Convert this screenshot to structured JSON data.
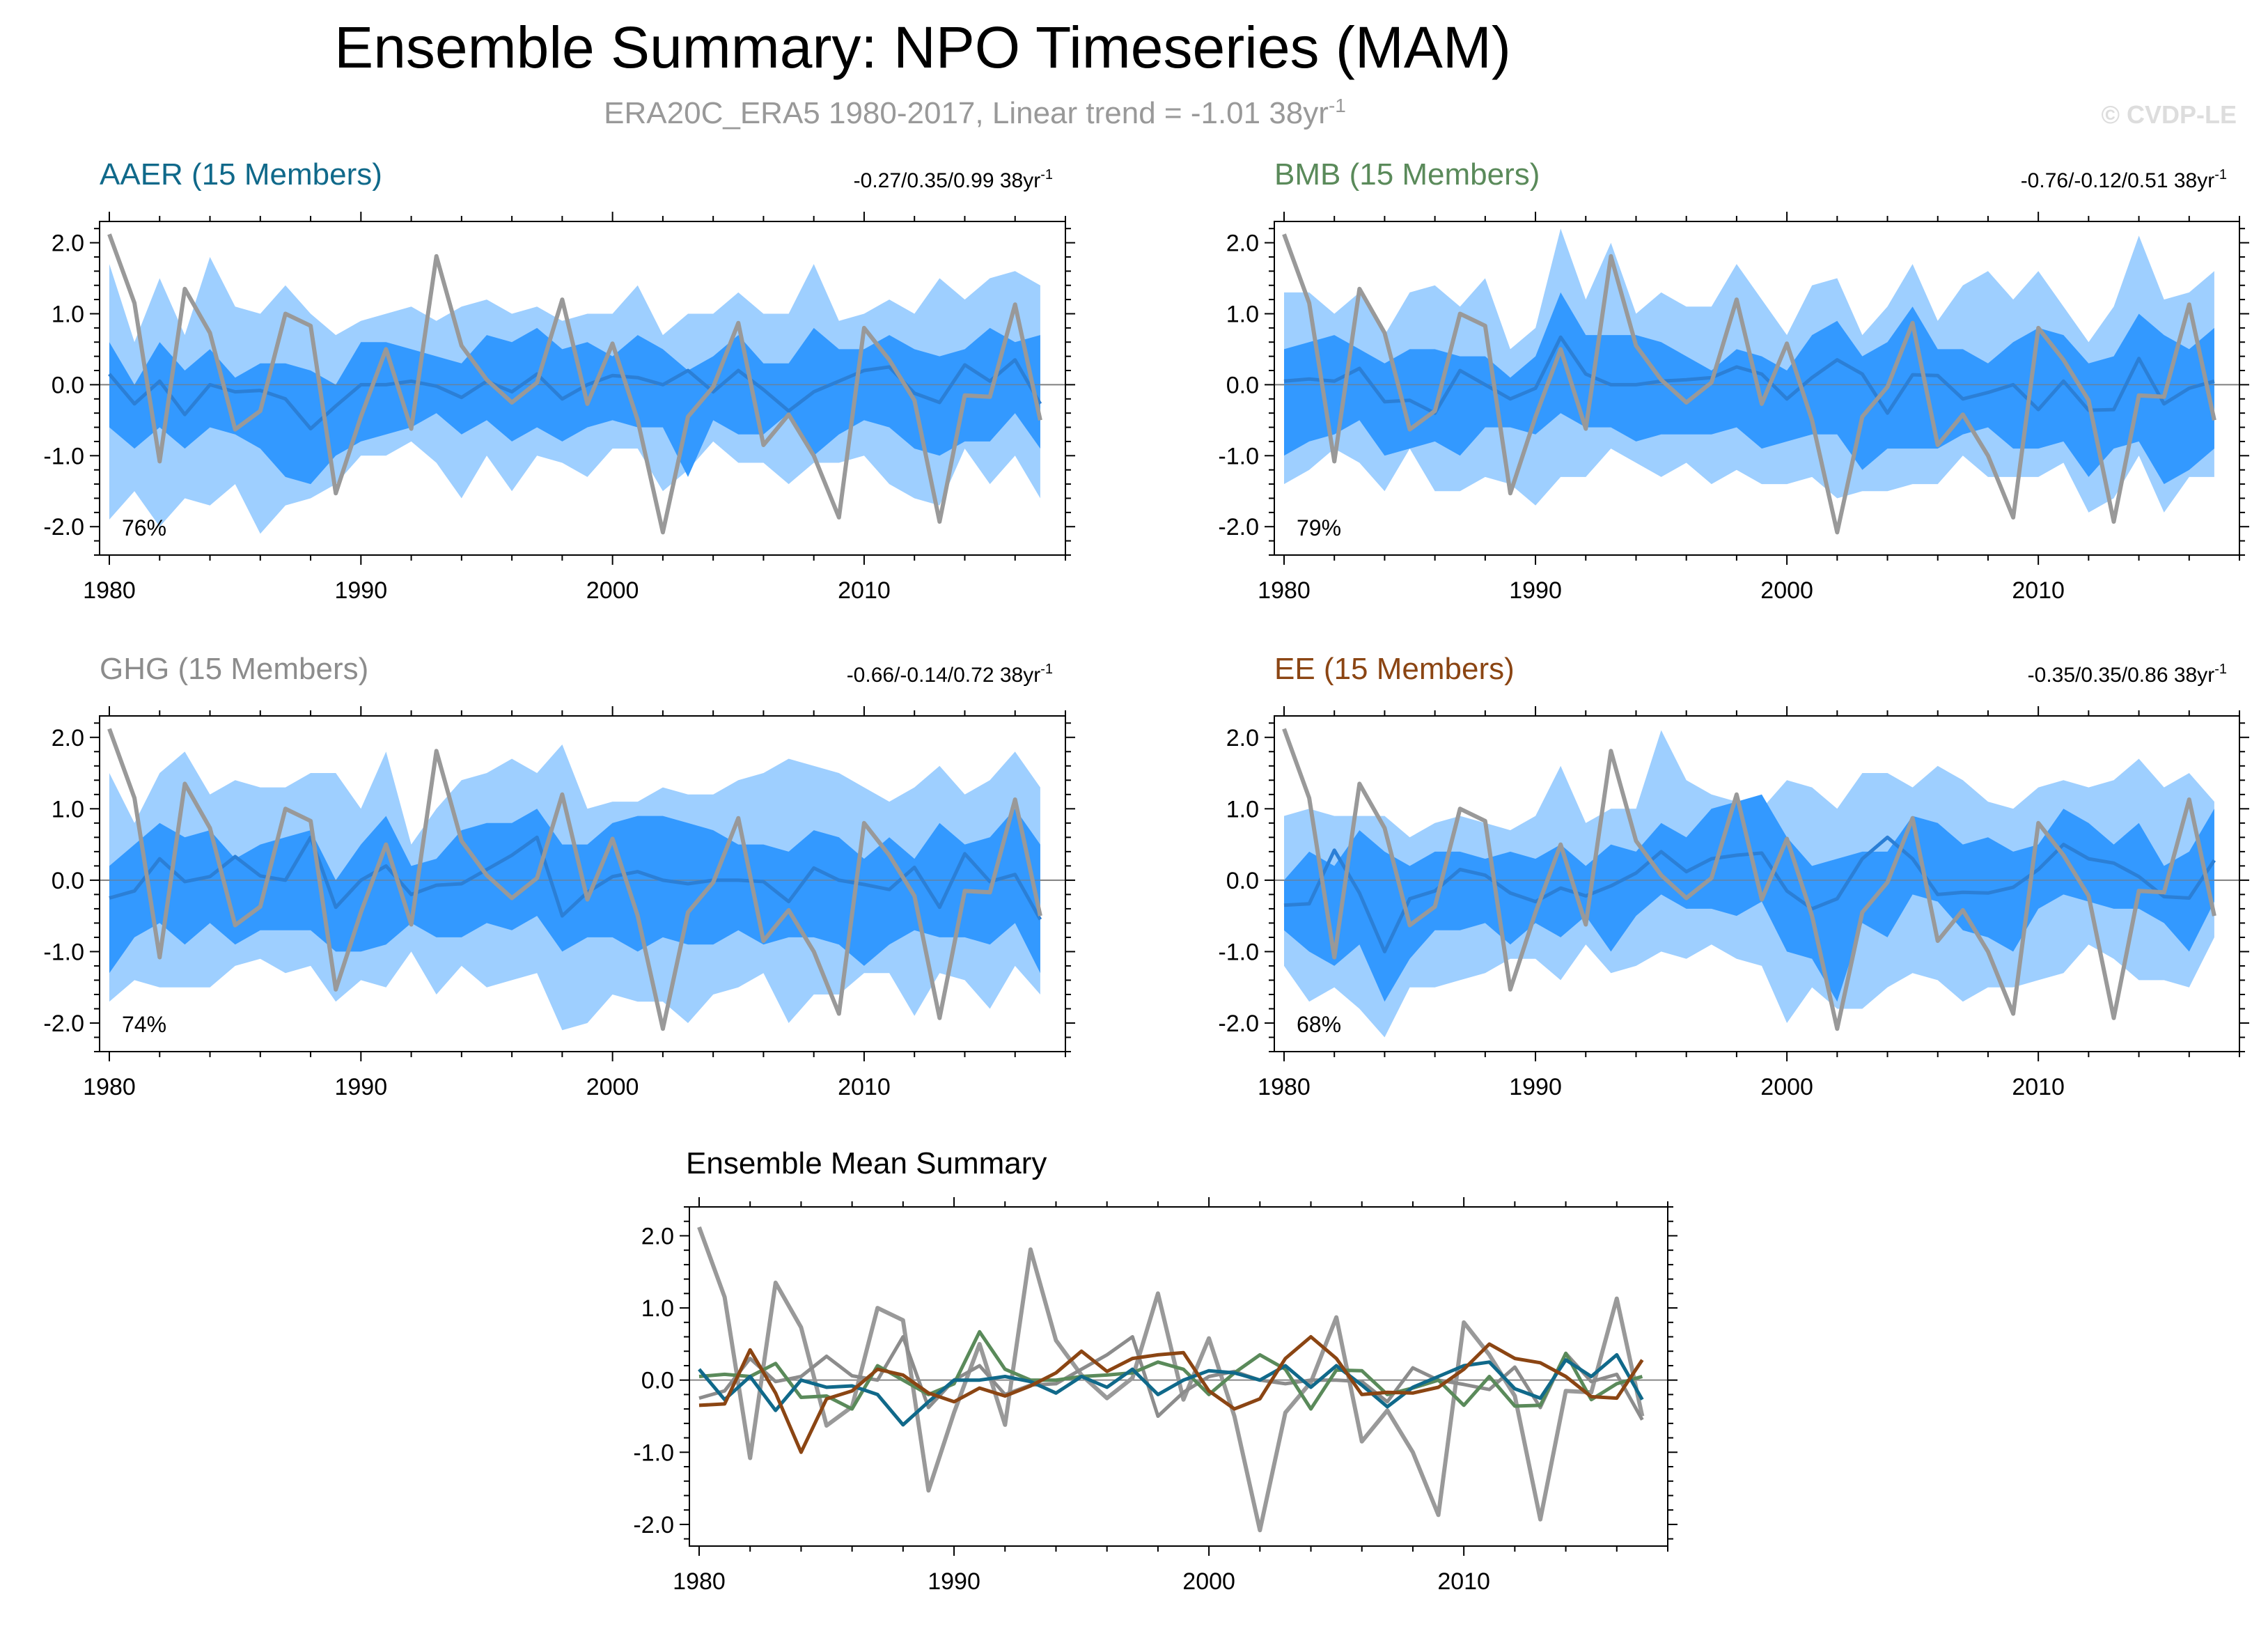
{
  "title": "Ensemble Summary: NPO Timeseries (MAM)",
  "subtitle": "ERA20C_ERA5 1980-2017, Linear trend = -1.01 38yr",
  "subtitle_exp": "-1",
  "watermark": "© CVDP-LE",
  "colors": {
    "outer_band": "#9ecfff",
    "inner_band": "#3399ff",
    "ens_mean": "#2b7fd6",
    "obs": "#999999",
    "AAER": "#10698a",
    "BMB": "#5a8a5a",
    "GHG": "#8c8c8c",
    "EE": "#8b4513"
  },
  "chart_data": [
    {
      "type": "area",
      "name": "AAER",
      "title": "AAER (15 Members)",
      "trend_label": "-0.27/0.35/0.99 38yr",
      "trend_exp": "-1",
      "pct_label": "76%",
      "x": [
        1980,
        1981,
        1982,
        1983,
        1984,
        1985,
        1986,
        1987,
        1988,
        1989,
        1990,
        1991,
        1992,
        1993,
        1994,
        1995,
        1996,
        1997,
        1998,
        1999,
        2000,
        2001,
        2002,
        2003,
        2004,
        2005,
        2006,
        2007,
        2008,
        2009,
        2010,
        2011,
        2012,
        2013,
        2014,
        2015,
        2016,
        2017
      ],
      "xticks": [
        "1980",
        "1990",
        "2000",
        "2010"
      ],
      "yticks": [
        "2.0",
        "1.0",
        "0.0",
        "-1.0",
        "-2.0"
      ],
      "ylim": [
        -2.4,
        2.3
      ],
      "band_outer_upper": [
        1.7,
        0.6,
        1.5,
        0.7,
        1.8,
        1.1,
        1.0,
        1.4,
        1.0,
        0.7,
        0.9,
        1.0,
        1.1,
        0.9,
        1.1,
        1.2,
        1.0,
        1.1,
        0.9,
        1.0,
        1.0,
        1.4,
        0.7,
        1.0,
        1.0,
        1.3,
        1.0,
        1.0,
        1.7,
        0.9,
        1.0,
        1.2,
        1.0,
        1.5,
        1.2,
        1.5,
        1.6,
        1.4
      ],
      "band_outer_lower": [
        -1.9,
        -1.5,
        -2.0,
        -1.6,
        -1.7,
        -1.4,
        -2.1,
        -1.7,
        -1.6,
        -1.4,
        -1.0,
        -1.0,
        -0.8,
        -1.1,
        -1.6,
        -1.0,
        -1.5,
        -1.0,
        -1.1,
        -1.3,
        -0.9,
        -0.9,
        -1.5,
        -1.2,
        -0.8,
        -1.1,
        -1.1,
        -1.4,
        -1.1,
        -1.1,
        -1.0,
        -1.4,
        -1.6,
        -1.7,
        -0.9,
        -1.4,
        -1.0,
        -1.6
      ],
      "band_inner_upper": [
        0.6,
        0.0,
        0.6,
        0.2,
        0.5,
        0.1,
        0.3,
        0.3,
        0.2,
        0.0,
        0.6,
        0.6,
        0.5,
        0.4,
        0.3,
        0.7,
        0.6,
        0.8,
        0.5,
        0.6,
        0.4,
        0.7,
        0.5,
        0.2,
        0.4,
        0.7,
        0.3,
        0.3,
        0.8,
        0.5,
        0.5,
        0.7,
        0.5,
        0.4,
        0.5,
        0.8,
        0.6,
        0.7
      ],
      "band_inner_lower": [
        -0.6,
        -0.9,
        -0.6,
        -0.9,
        -0.6,
        -0.7,
        -0.9,
        -1.3,
        -1.4,
        -1.0,
        -0.8,
        -0.7,
        -0.6,
        -0.4,
        -0.7,
        -0.5,
        -0.8,
        -0.6,
        -0.8,
        -0.6,
        -0.5,
        -0.6,
        -0.6,
        -1.3,
        -0.5,
        -0.7,
        -0.7,
        -0.4,
        -1.0,
        -0.7,
        -0.5,
        -0.6,
        -0.9,
        -1.0,
        -0.8,
        -0.8,
        -0.4,
        -0.9
      ],
      "ensemble_mean": [
        0.15,
        -0.27,
        0.05,
        -0.42,
        0.0,
        -0.1,
        -0.08,
        -0.2,
        -0.62,
        -0.3,
        0.0,
        0.0,
        0.05,
        -0.02,
        -0.18,
        0.05,
        -0.1,
        0.15,
        -0.2,
        0.0,
        0.13,
        0.1,
        0.0,
        0.2,
        -0.1,
        0.2,
        -0.07,
        -0.37,
        -0.1,
        0.05,
        0.2,
        0.25,
        -0.12,
        -0.25,
        0.28,
        0.05,
        0.35,
        -0.27
      ]
    },
    {
      "type": "area",
      "name": "BMB",
      "title": "BMB (15 Members)",
      "trend_label": "-0.76/-0.12/0.51 38yr",
      "trend_exp": "-1",
      "pct_label": "79%",
      "x": [
        1980,
        1981,
        1982,
        1983,
        1984,
        1985,
        1986,
        1987,
        1988,
        1989,
        1990,
        1991,
        1992,
        1993,
        1994,
        1995,
        1996,
        1997,
        1998,
        1999,
        2000,
        2001,
        2002,
        2003,
        2004,
        2005,
        2006,
        2007,
        2008,
        2009,
        2010,
        2011,
        2012,
        2013,
        2014,
        2015,
        2016,
        2017
      ],
      "xticks": [
        "1980",
        "1990",
        "2000",
        "2010"
      ],
      "yticks": [
        "2.0",
        "1.0",
        "0.0",
        "-1.0",
        "-2.0"
      ],
      "ylim": [
        -2.4,
        2.3
      ],
      "band_outer_upper": [
        1.3,
        1.3,
        1.0,
        1.3,
        0.7,
        1.3,
        1.4,
        1.1,
        1.5,
        0.5,
        0.8,
        2.2,
        1.2,
        2.0,
        1.0,
        1.3,
        1.1,
        1.1,
        1.7,
        1.2,
        0.7,
        1.4,
        1.5,
        0.7,
        1.1,
        1.7,
        0.9,
        1.4,
        1.6,
        1.2,
        1.6,
        1.1,
        0.6,
        1.1,
        2.1,
        1.2,
        1.3,
        1.6
      ],
      "band_outer_lower": [
        -1.4,
        -1.2,
        -0.9,
        -1.1,
        -1.5,
        -0.9,
        -1.5,
        -1.5,
        -1.3,
        -1.4,
        -1.7,
        -1.3,
        -1.3,
        -0.9,
        -1.1,
        -1.3,
        -1.1,
        -1.4,
        -1.2,
        -1.4,
        -1.4,
        -1.3,
        -1.6,
        -1.5,
        -1.5,
        -1.4,
        -1.4,
        -1.0,
        -1.3,
        -1.3,
        -1.3,
        -1.1,
        -1.8,
        -1.6,
        -1.0,
        -1.8,
        -1.3,
        -1.3
      ],
      "band_inner_upper": [
        0.5,
        0.6,
        0.7,
        0.5,
        0.3,
        0.5,
        0.5,
        0.4,
        0.4,
        0.1,
        0.4,
        1.3,
        0.7,
        0.7,
        0.7,
        0.6,
        0.4,
        0.2,
        0.5,
        0.4,
        0.2,
        0.7,
        0.9,
        0.4,
        0.6,
        1.1,
        0.5,
        0.5,
        0.3,
        0.6,
        0.8,
        0.7,
        0.3,
        0.4,
        1.0,
        0.7,
        0.5,
        0.8
      ],
      "band_inner_lower": [
        -1.0,
        -0.8,
        -0.7,
        -0.5,
        -1.0,
        -0.9,
        -0.8,
        -1.0,
        -0.6,
        -0.6,
        -0.7,
        -0.4,
        -0.6,
        -0.6,
        -0.8,
        -0.7,
        -0.7,
        -0.7,
        -0.6,
        -0.9,
        -0.8,
        -0.7,
        -0.7,
        -1.2,
        -0.9,
        -0.9,
        -0.9,
        -0.7,
        -0.6,
        -0.9,
        -0.9,
        -0.8,
        -1.3,
        -0.9,
        -0.8,
        -1.4,
        -1.2,
        -0.9
      ],
      "ensemble_mean": [
        0.05,
        0.08,
        0.05,
        0.23,
        -0.24,
        -0.22,
        -0.4,
        0.2,
        0.0,
        -0.2,
        -0.05,
        0.67,
        0.15,
        0.0,
        0.0,
        0.05,
        0.07,
        0.1,
        0.25,
        0.15,
        -0.2,
        0.1,
        0.35,
        0.15,
        -0.4,
        0.14,
        0.13,
        -0.2,
        -0.11,
        0.0,
        -0.35,
        0.05,
        -0.36,
        -0.35,
        0.37,
        -0.27,
        -0.05,
        0.05
      ]
    },
    {
      "type": "area",
      "name": "GHG",
      "title": "GHG (15 Members)",
      "trend_label": "-0.66/-0.14/0.72 38yr",
      "trend_exp": "-1",
      "pct_label": "74%",
      "x": [
        1980,
        1981,
        1982,
        1983,
        1984,
        1985,
        1986,
        1987,
        1988,
        1989,
        1990,
        1991,
        1992,
        1993,
        1994,
        1995,
        1996,
        1997,
        1998,
        1999,
        2000,
        2001,
        2002,
        2003,
        2004,
        2005,
        2006,
        2007,
        2008,
        2009,
        2010,
        2011,
        2012,
        2013,
        2014,
        2015,
        2016,
        2017
      ],
      "xticks": [
        "1980",
        "1990",
        "2000",
        "2010"
      ],
      "yticks": [
        "2.0",
        "1.0",
        "0.0",
        "-1.0",
        "-2.0"
      ],
      "ylim": [
        -2.4,
        2.3
      ],
      "band_outer_upper": [
        1.5,
        0.8,
        1.5,
        1.8,
        1.2,
        1.4,
        1.3,
        1.3,
        1.5,
        1.5,
        1.0,
        1.8,
        0.5,
        1.0,
        1.4,
        1.5,
        1.7,
        1.5,
        1.9,
        1.0,
        1.1,
        1.1,
        1.3,
        1.2,
        1.2,
        1.4,
        1.5,
        1.7,
        1.6,
        1.5,
        1.3,
        1.1,
        1.3,
        1.6,
        1.2,
        1.4,
        1.8,
        1.3
      ],
      "band_outer_lower": [
        -1.7,
        -1.4,
        -1.5,
        -1.5,
        -1.5,
        -1.2,
        -1.1,
        -1.3,
        -1.2,
        -1.7,
        -1.4,
        -1.5,
        -1.0,
        -1.6,
        -1.2,
        -1.5,
        -1.4,
        -1.3,
        -2.1,
        -2.0,
        -1.6,
        -1.7,
        -1.7,
        -2.0,
        -1.6,
        -1.5,
        -1.3,
        -2.0,
        -1.6,
        -1.6,
        -1.3,
        -1.3,
        -1.9,
        -1.3,
        -1.4,
        -1.8,
        -1.2,
        -1.6
      ],
      "band_inner_upper": [
        0.2,
        0.5,
        0.8,
        0.6,
        0.7,
        0.3,
        0.5,
        0.6,
        0.7,
        0.0,
        0.5,
        0.9,
        0.2,
        0.3,
        0.7,
        0.8,
        0.8,
        1.0,
        0.5,
        0.5,
        0.8,
        0.9,
        0.9,
        0.8,
        0.7,
        0.5,
        0.5,
        0.4,
        0.7,
        0.6,
        0.3,
        0.6,
        0.3,
        0.8,
        0.5,
        0.6,
        1.0,
        0.5
      ],
      "band_inner_lower": [
        -1.3,
        -0.8,
        -0.6,
        -0.9,
        -0.6,
        -0.9,
        -0.7,
        -0.7,
        -0.7,
        -1.0,
        -1.0,
        -0.9,
        -0.6,
        -0.8,
        -0.8,
        -0.6,
        -0.7,
        -0.5,
        -1.0,
        -0.8,
        -0.8,
        -1.0,
        -0.8,
        -0.9,
        -0.9,
        -0.7,
        -0.9,
        -0.8,
        -0.8,
        -0.9,
        -1.2,
        -0.9,
        -0.7,
        -0.8,
        -0.8,
        -0.9,
        -0.6,
        -1.3
      ],
      "ensemble_mean": [
        -0.25,
        -0.15,
        0.3,
        -0.02,
        0.05,
        0.33,
        0.06,
        0.0,
        0.6,
        -0.38,
        0.0,
        0.2,
        -0.2,
        -0.07,
        -0.05,
        0.15,
        0.35,
        0.6,
        -0.5,
        -0.17,
        0.05,
        0.12,
        0.0,
        -0.05,
        0.0,
        0.0,
        -0.02,
        -0.3,
        0.17,
        0.0,
        -0.06,
        -0.13,
        0.18,
        -0.38,
        0.37,
        -0.02,
        0.08,
        -0.55
      ]
    },
    {
      "type": "area",
      "name": "EE",
      "title": "EE (15 Members)",
      "trend_label": "-0.35/0.35/0.86 38yr",
      "trend_exp": "-1",
      "pct_label": "68%",
      "x": [
        1980,
        1981,
        1982,
        1983,
        1984,
        1985,
        1986,
        1987,
        1988,
        1989,
        1990,
        1991,
        1992,
        1993,
        1994,
        1995,
        1996,
        1997,
        1998,
        1999,
        2000,
        2001,
        2002,
        2003,
        2004,
        2005,
        2006,
        2007,
        2008,
        2009,
        2010,
        2011,
        2012,
        2013,
        2014,
        2015,
        2016,
        2017
      ],
      "xticks": [
        "1980",
        "1990",
        "2000",
        "2010"
      ],
      "yticks": [
        "2.0",
        "1.0",
        "0.0",
        "-1.0",
        "-2.0"
      ],
      "ylim": [
        -2.4,
        2.3
      ],
      "band_outer_upper": [
        0.9,
        1.0,
        0.9,
        0.9,
        0.9,
        0.6,
        0.8,
        0.9,
        0.8,
        0.7,
        0.9,
        1.6,
        0.8,
        1.0,
        1.0,
        2.1,
        1.4,
        1.2,
        1.1,
        1.0,
        1.4,
        1.3,
        1.0,
        1.5,
        1.5,
        1.3,
        1.6,
        1.4,
        1.1,
        1.0,
        1.3,
        1.4,
        1.3,
        1.4,
        1.7,
        1.3,
        1.5,
        1.1
      ],
      "band_outer_lower": [
        -1.2,
        -1.7,
        -1.5,
        -1.8,
        -2.2,
        -1.5,
        -1.5,
        -1.4,
        -1.3,
        -1.1,
        -1.1,
        -1.4,
        -0.9,
        -1.3,
        -1.2,
        -1.0,
        -1.1,
        -0.9,
        -1.1,
        -1.2,
        -2.0,
        -1.5,
        -1.8,
        -1.8,
        -1.5,
        -1.3,
        -1.4,
        -1.7,
        -1.5,
        -1.5,
        -1.4,
        -1.3,
        -0.9,
        -1.1,
        -1.4,
        -1.4,
        -1.5,
        -0.8
      ],
      "band_inner_upper": [
        0.0,
        0.4,
        0.2,
        0.7,
        0.4,
        0.2,
        0.4,
        0.4,
        0.3,
        0.4,
        0.3,
        0.5,
        0.2,
        0.5,
        0.4,
        0.8,
        0.6,
        1.0,
        1.1,
        1.2,
        0.6,
        0.2,
        0.3,
        0.4,
        0.4,
        0.9,
        0.8,
        0.5,
        0.6,
        0.4,
        0.5,
        1.0,
        0.8,
        0.5,
        0.8,
        0.2,
        0.4,
        1.0
      ],
      "band_inner_lower": [
        -0.7,
        -1.0,
        -1.2,
        -0.9,
        -1.7,
        -1.1,
        -0.7,
        -0.7,
        -0.6,
        -0.9,
        -0.6,
        -0.8,
        -0.5,
        -1.0,
        -0.5,
        -0.2,
        -0.4,
        -0.4,
        -0.5,
        -0.3,
        -1.0,
        -1.1,
        -1.7,
        -0.6,
        -0.8,
        -0.2,
        -0.3,
        -0.7,
        -0.8,
        -1.0,
        -0.4,
        -0.2,
        -0.3,
        -0.4,
        -0.4,
        -0.6,
        -1.0,
        -0.3
      ],
      "ensemble_mean": [
        -0.35,
        -0.33,
        0.42,
        -0.18,
        -1.0,
        -0.26,
        -0.15,
        0.15,
        0.07,
        -0.18,
        -0.3,
        -0.11,
        -0.22,
        -0.08,
        0.1,
        0.4,
        0.12,
        0.3,
        0.35,
        0.38,
        -0.15,
        -0.4,
        -0.26,
        0.3,
        0.6,
        0.3,
        -0.2,
        -0.17,
        -0.18,
        -0.1,
        0.15,
        0.5,
        0.3,
        0.24,
        0.05,
        -0.23,
        -0.25,
        0.28
      ]
    },
    {
      "type": "line",
      "name": "Summary",
      "title": "Ensemble Mean Summary",
      "x": [
        1980,
        1981,
        1982,
        1983,
        1984,
        1985,
        1986,
        1987,
        1988,
        1989,
        1990,
        1991,
        1992,
        1993,
        1994,
        1995,
        1996,
        1997,
        1998,
        1999,
        2000,
        2001,
        2002,
        2003,
        2004,
        2005,
        2006,
        2007,
        2008,
        2009,
        2010,
        2011,
        2012,
        2013,
        2014,
        2015,
        2016,
        2017
      ],
      "xticks": [
        "1980",
        "1990",
        "2000",
        "2010"
      ],
      "yticks": [
        "2.0",
        "1.0",
        "0.0",
        "-1.0",
        "-2.0"
      ],
      "ylim": [
        -2.3,
        2.4
      ],
      "series_order": [
        "GHG",
        "BMB",
        "AAER",
        "EE"
      ]
    }
  ],
  "observations": {
    "name": "ERA20C_ERA5",
    "values": [
      2.12,
      1.15,
      -1.08,
      1.35,
      0.73,
      -0.63,
      -0.37,
      1.0,
      0.83,
      -1.53,
      -0.45,
      0.5,
      -0.62,
      1.81,
      0.55,
      0.07,
      -0.25,
      0.03,
      1.2,
      -0.27,
      0.58,
      -0.5,
      -2.08,
      -0.45,
      -0.03,
      0.87,
      -0.85,
      -0.42,
      -1.0,
      -1.87,
      0.8,
      0.35,
      -0.22,
      -1.93,
      -0.15,
      -0.17,
      1.13,
      -0.5
    ]
  }
}
